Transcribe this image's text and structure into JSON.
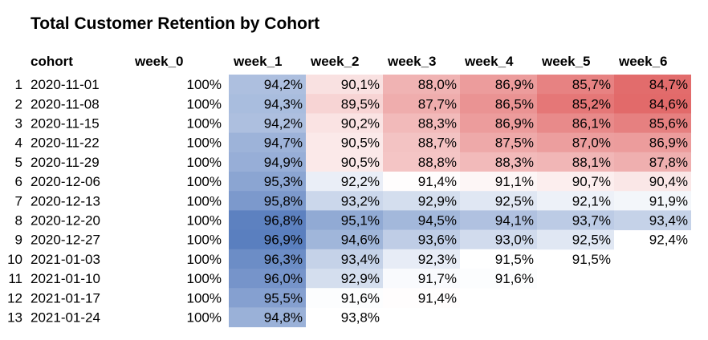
{
  "chart_data": {
    "type": "heatmap",
    "title": "Total Customer Retention by Cohort",
    "columns": [
      "cohort",
      "week_0",
      "week_1",
      "week_2",
      "week_3",
      "week_4",
      "week_5",
      "week_6"
    ],
    "rows": [
      {
        "index": "1",
        "cohort": "2020-11-01",
        "values": [
          "100%",
          "94,2%",
          "90,1%",
          "88,0%",
          "86,9%",
          "85,7%",
          "84,7%"
        ],
        "nums": [
          100,
          94.2,
          90.1,
          88.0,
          86.9,
          85.7,
          84.7
        ]
      },
      {
        "index": "2",
        "cohort": "2020-11-08",
        "values": [
          "100%",
          "94,3%",
          "89,5%",
          "87,7%",
          "86,5%",
          "85,2%",
          "84,6%"
        ],
        "nums": [
          100,
          94.3,
          89.5,
          87.7,
          86.5,
          85.2,
          84.6
        ]
      },
      {
        "index": "3",
        "cohort": "2020-11-15",
        "values": [
          "100%",
          "94,2%",
          "90,2%",
          "88,3%",
          "86,9%",
          "86,1%",
          "85,6%"
        ],
        "nums": [
          100,
          94.2,
          90.2,
          88.3,
          86.9,
          86.1,
          85.6
        ]
      },
      {
        "index": "4",
        "cohort": "2020-11-22",
        "values": [
          "100%",
          "94,7%",
          "90,5%",
          "88,7%",
          "87,5%",
          "87,0%",
          "86,9%"
        ],
        "nums": [
          100,
          94.7,
          90.5,
          88.7,
          87.5,
          87.0,
          86.9
        ]
      },
      {
        "index": "5",
        "cohort": "2020-11-29",
        "values": [
          "100%",
          "94,9%",
          "90,5%",
          "88,8%",
          "88,3%",
          "88,1%",
          "87,8%"
        ],
        "nums": [
          100,
          94.9,
          90.5,
          88.8,
          88.3,
          88.1,
          87.8
        ]
      },
      {
        "index": "6",
        "cohort": "2020-12-06",
        "values": [
          "100%",
          "95,3%",
          "92,2%",
          "91,4%",
          "91,1%",
          "90,7%",
          "90,4%"
        ],
        "nums": [
          100,
          95.3,
          92.2,
          91.4,
          91.1,
          90.7,
          90.4
        ]
      },
      {
        "index": "7",
        "cohort": "2020-12-13",
        "values": [
          "100%",
          "95,8%",
          "93,2%",
          "92,9%",
          "92,5%",
          "92,1%",
          "91,9%"
        ],
        "nums": [
          100,
          95.8,
          93.2,
          92.9,
          92.5,
          92.1,
          91.9
        ]
      },
      {
        "index": "8",
        "cohort": "2020-12-20",
        "values": [
          "100%",
          "96,8%",
          "95,1%",
          "94,5%",
          "94,1%",
          "93,7%",
          "93,4%"
        ],
        "nums": [
          100,
          96.8,
          95.1,
          94.5,
          94.1,
          93.7,
          93.4
        ]
      },
      {
        "index": "9",
        "cohort": "2020-12-27",
        "values": [
          "100%",
          "96,9%",
          "94,6%",
          "93,6%",
          "93,0%",
          "92,5%",
          "92,4%"
        ],
        "nums": [
          100,
          96.9,
          94.6,
          93.6,
          93.0,
          92.5,
          92.4
        ]
      },
      {
        "index": "10",
        "cohort": "2021-01-03",
        "values": [
          "100%",
          "96,3%",
          "93,4%",
          "92,3%",
          "91,5%",
          "91,5%",
          ""
        ],
        "nums": [
          100,
          96.3,
          93.4,
          92.3,
          91.5,
          91.5,
          null
        ]
      },
      {
        "index": "11",
        "cohort": "2021-01-10",
        "values": [
          "100%",
          "96,0%",
          "92,9%",
          "91,7%",
          "91,6%",
          "",
          ""
        ],
        "nums": [
          100,
          96.0,
          92.9,
          91.7,
          91.6,
          null,
          null
        ]
      },
      {
        "index": "12",
        "cohort": "2021-01-17",
        "values": [
          "100%",
          "95,5%",
          "91,6%",
          "91,4%",
          "",
          "",
          ""
        ],
        "nums": [
          100,
          95.5,
          91.6,
          91.4,
          null,
          null,
          null
        ]
      },
      {
        "index": "13",
        "cohort": "2021-01-24",
        "values": [
          "100%",
          "94,8%",
          "93,8%",
          "",
          "",
          "",
          ""
        ],
        "nums": [
          100,
          94.8,
          93.8,
          null,
          null,
          null,
          null
        ]
      }
    ],
    "colormap": {
      "low": "#e06666",
      "mid": "#ffffff",
      "high": "#5b7fc0"
    },
    "no_color_values": [
      "2020-12-27 week_6",
      "2021-01-24 week_2",
      "2021-01-03 week_5"
    ]
  }
}
